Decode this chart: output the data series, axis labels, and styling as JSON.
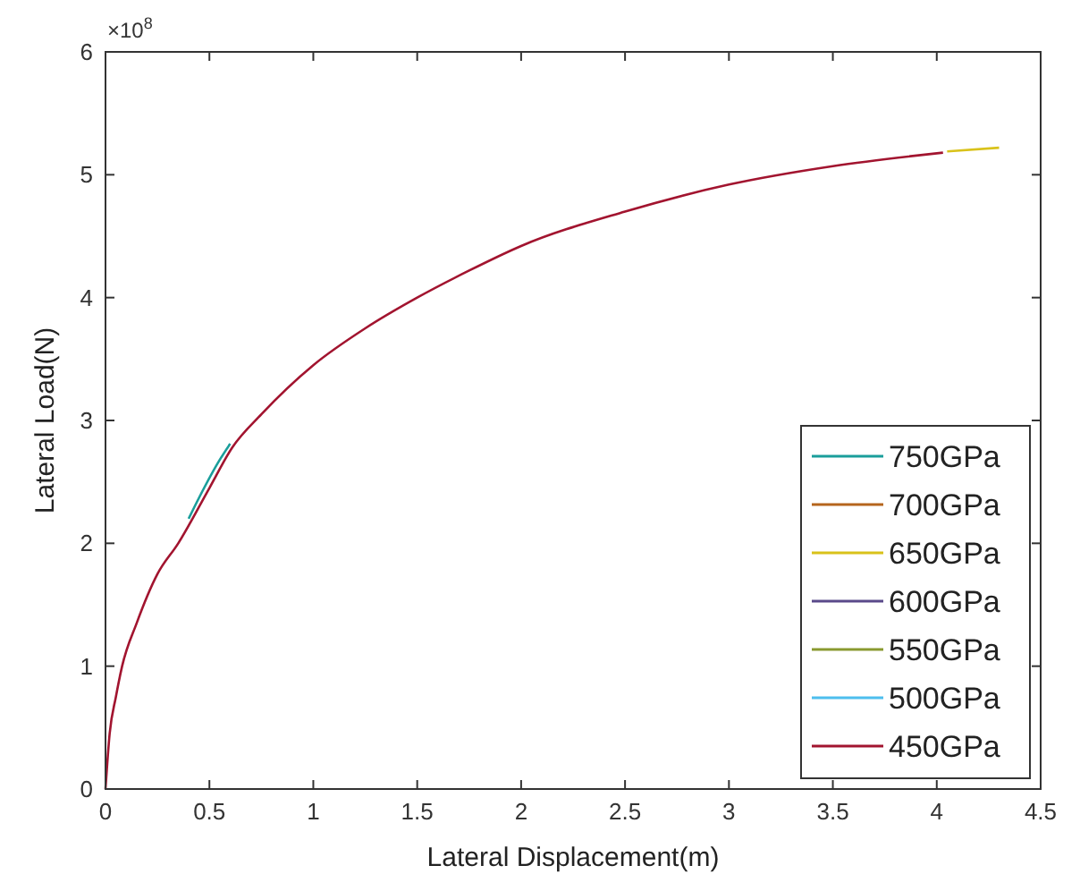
{
  "chart_data": {
    "type": "line",
    "xlabel": "Lateral Displacement(m)",
    "ylabel": "Lateral Load(N)",
    "annotations": [
      "×10$^{8}$"
    ],
    "x": [
      0,
      0.02,
      0.05,
      0.08,
      0.15,
      0.25,
      0.35,
      0.5,
      0.61,
      0.75,
      1,
      1.25,
      1.5,
      1.75,
      2,
      2.5,
      3,
      3.5,
      4.03
    ],
    "series": [
      {
        "name": "750GPa",
        "color": "#1a9e9b",
        "x": [
          0.4,
          0.45,
          0.55,
          0.6
        ],
        "values": [
          2.2,
          2.37,
          2.68,
          2.81
        ]
      },
      {
        "name": "700GPa",
        "color": "#b5651d",
        "values": [
          null,
          null,
          null,
          null,
          null,
          null,
          null,
          null,
          null,
          null,
          null,
          null,
          null,
          null,
          null,
          null,
          null,
          null,
          null
        ]
      },
      {
        "name": "650GPa",
        "color": "#d9c21a",
        "x": [
          4.05,
          4.3
        ],
        "values": [
          5.19,
          5.22
        ]
      },
      {
        "name": "600GPa",
        "color": "#5a4a8a",
        "values": [
          null,
          null,
          null,
          null,
          null,
          null,
          null,
          null,
          null,
          null,
          null,
          null,
          null,
          null,
          null,
          null,
          null,
          null,
          null
        ]
      },
      {
        "name": "550GPa",
        "color": "#8a9a30",
        "values": [
          null,
          null,
          null,
          null,
          null,
          null,
          null,
          null,
          null,
          null,
          null,
          null,
          null,
          null,
          null,
          null,
          null,
          null,
          null
        ]
      },
      {
        "name": "500GPa",
        "color": "#4dbeee",
        "values": [
          null,
          null,
          null,
          null,
          null,
          null,
          null,
          null,
          null,
          null,
          null,
          null,
          null,
          null,
          null,
          null,
          null,
          null,
          null
        ]
      },
      {
        "name": "450GPa",
        "color": "#a2142f",
        "values": [
          0,
          0.45,
          0.75,
          1.0,
          1.35,
          1.75,
          2.0,
          2.45,
          2.78,
          3.05,
          3.45,
          3.75,
          4.0,
          4.22,
          4.42,
          4.7,
          4.92,
          5.07,
          5.18
        ]
      }
    ],
    "xlim": [
      0,
      4.5
    ],
    "xticks": [
      0,
      0.5,
      1,
      1.5,
      2,
      2.5,
      3,
      3.5,
      4,
      4.5
    ],
    "ylim": [
      0,
      6
    ],
    "yticks": [
      0,
      1,
      2,
      3,
      4,
      5,
      6
    ],
    "legend": "bottom right",
    "grid": false
  }
}
